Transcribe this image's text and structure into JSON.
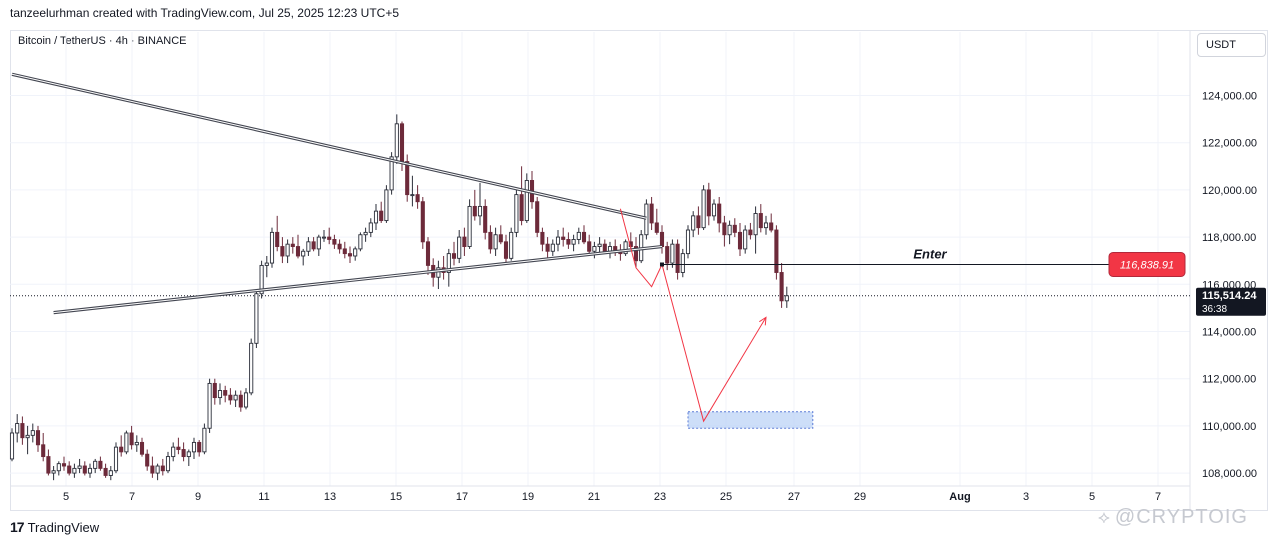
{
  "header": {
    "author_line": "tanzeelurhman created with TradingView.com, Jul 25, 2025 12:23 UTC+5"
  },
  "symbol": {
    "title": "Bitcoin / TetherUS · 4h · BINANCE",
    "currency": "USDT"
  },
  "footer": {
    "logo_text": "TradingView",
    "watermark": "@CRYPTOIG"
  },
  "colors": {
    "bull": "#2a2e39",
    "bear": "#6d2a3a",
    "pattern_line": "#434651",
    "projection": "#f23645",
    "target_fill": "#bcd3f5",
    "target_border": "#5b7bd6",
    "label_red": "#f23645",
    "price_tag": "#131722"
  },
  "chart_data": {
    "type": "candlestick",
    "symbol": "BTCUSDT",
    "interval": "4h",
    "exchange": "BINANCE",
    "x_tick_labels": [
      "5",
      "7",
      "9",
      "11",
      "13",
      "15",
      "17",
      "19",
      "21",
      "23",
      "25",
      "27",
      "29",
      "Aug",
      "3",
      "5",
      "7"
    ],
    "y_tick_labels": [
      "124,000.00",
      "122,000.00",
      "120,000.00",
      "118,000.00",
      "116,000.00",
      "114,000.00",
      "112,000.00",
      "110,000.00",
      "108,000.00"
    ],
    "ylim": [
      107000,
      126000
    ],
    "current_price": "115,514.24",
    "countdown": "36:38",
    "candles": [
      [
        108600,
        109900,
        108500,
        109700
      ],
      [
        109700,
        110500,
        109300,
        110100
      ],
      [
        110100,
        110400,
        109200,
        109500
      ],
      [
        109500,
        110000,
        108800,
        109600
      ],
      [
        109600,
        110100,
        109300,
        109800
      ],
      [
        109800,
        110000,
        108900,
        109200
      ],
      [
        109200,
        109700,
        108500,
        108700
      ],
      [
        108700,
        109000,
        107900,
        108000
      ],
      [
        108000,
        108300,
        107700,
        108100
      ],
      [
        108100,
        108500,
        107900,
        108400
      ],
      [
        108400,
        108700,
        108100,
        108300
      ],
      [
        108300,
        108500,
        107900,
        108000
      ],
      [
        108000,
        108400,
        107800,
        108200
      ],
      [
        108200,
        108600,
        108000,
        108300
      ],
      [
        108300,
        108500,
        107900,
        108000
      ],
      [
        108000,
        108400,
        107800,
        108200
      ],
      [
        108200,
        108600,
        108000,
        108500
      ],
      [
        108500,
        108700,
        108100,
        108200
      ],
      [
        108200,
        108400,
        107800,
        107900
      ],
      [
        107900,
        108300,
        107700,
        108100
      ],
      [
        108100,
        109300,
        108000,
        109100
      ],
      [
        109100,
        109600,
        108700,
        108900
      ],
      [
        108900,
        109800,
        108800,
        109700
      ],
      [
        109700,
        110000,
        109000,
        109200
      ],
      [
        109200,
        109600,
        108900,
        109300
      ],
      [
        109300,
        109500,
        108700,
        108800
      ],
      [
        108800,
        109000,
        108100,
        108300
      ],
      [
        108300,
        108700,
        107800,
        108000
      ],
      [
        108000,
        108400,
        107700,
        108300
      ],
      [
        108300,
        108600,
        107900,
        108100
      ],
      [
        108100,
        108900,
        108000,
        108700
      ],
      [
        108700,
        109300,
        108500,
        109100
      ],
      [
        109100,
        109500,
        108800,
        109000
      ],
      [
        109000,
        109300,
        108500,
        108700
      ],
      [
        108700,
        109000,
        108300,
        108900
      ],
      [
        108900,
        109500,
        108600,
        109300
      ],
      [
        109300,
        109400,
        108700,
        108900
      ],
      [
        108900,
        110100,
        108800,
        109900
      ],
      [
        109900,
        112000,
        109700,
        111800
      ],
      [
        111800,
        112000,
        110900,
        111200
      ],
      [
        111200,
        111800,
        110900,
        111500
      ],
      [
        111500,
        111700,
        111000,
        111300
      ],
      [
        111300,
        111600,
        110900,
        111100
      ],
      [
        111100,
        111500,
        110800,
        111300
      ],
      [
        111300,
        111500,
        110600,
        110800
      ],
      [
        110800,
        111600,
        110700,
        111400
      ],
      [
        111400,
        113700,
        111300,
        113500
      ],
      [
        113500,
        115800,
        113300,
        115600
      ],
      [
        115600,
        117000,
        115400,
        116800
      ],
      [
        116800,
        117200,
        116300,
        116900
      ],
      [
        116900,
        118400,
        116700,
        118200
      ],
      [
        118200,
        118900,
        117400,
        117600
      ],
      [
        117600,
        118000,
        116900,
        117200
      ],
      [
        117200,
        117900,
        116900,
        117700
      ],
      [
        117700,
        118000,
        117300,
        117600
      ],
      [
        117600,
        118100,
        117100,
        117200
      ],
      [
        117200,
        117500,
        116800,
        117400
      ],
      [
        117400,
        118000,
        117200,
        117800
      ],
      [
        117800,
        118000,
        117400,
        117500
      ],
      [
        117500,
        118100,
        117200,
        118000
      ],
      [
        118000,
        118300,
        117800,
        118000
      ],
      [
        118000,
        118400,
        117700,
        117900
      ],
      [
        117900,
        118100,
        117500,
        117700
      ],
      [
        117700,
        117900,
        117300,
        117500
      ],
      [
        117500,
        117800,
        117100,
        117300
      ],
      [
        117300,
        117600,
        116900,
        117200
      ],
      [
        117200,
        117600,
        117000,
        117500
      ],
      [
        117500,
        118200,
        117400,
        118100
      ],
      [
        118100,
        118400,
        117800,
        118200
      ],
      [
        118200,
        118800,
        118000,
        118600
      ],
      [
        118600,
        119400,
        118300,
        119100
      ],
      [
        119100,
        119500,
        118600,
        118700
      ],
      [
        118700,
        120200,
        118600,
        120000
      ],
      [
        120000,
        121600,
        119800,
        121400
      ],
      [
        121400,
        123200,
        121100,
        122800
      ],
      [
        122800,
        122900,
        120800,
        121200
      ],
      [
        121200,
        121500,
        119500,
        119800
      ],
      [
        119800,
        120600,
        119300,
        119800
      ],
      [
        119800,
        120200,
        119200,
        119500
      ],
      [
        119500,
        119700,
        117500,
        117800
      ],
      [
        117800,
        118000,
        116400,
        116800
      ],
      [
        116800,
        117100,
        115900,
        116300
      ],
      [
        116300,
        117000,
        115800,
        116700
      ],
      [
        116700,
        117200,
        116200,
        116500
      ],
      [
        116500,
        117500,
        115900,
        117300
      ],
      [
        117300,
        117800,
        116800,
        117100
      ],
      [
        117100,
        118300,
        116900,
        118000
      ],
      [
        118000,
        118400,
        117200,
        117600
      ],
      [
        117600,
        119600,
        117500,
        119300
      ],
      [
        119300,
        120000,
        118700,
        118900
      ],
      [
        118900,
        120300,
        118500,
        119300
      ],
      [
        119300,
        119600,
        117900,
        118200
      ],
      [
        118200,
        118500,
        117300,
        117500
      ],
      [
        117500,
        118400,
        117200,
        118100
      ],
      [
        118100,
        118500,
        117700,
        117800
      ],
      [
        117800,
        118100,
        116900,
        117100
      ],
      [
        117100,
        118400,
        117000,
        118200
      ],
      [
        118200,
        120100,
        118000,
        119800
      ],
      [
        119800,
        121000,
        118500,
        118700
      ],
      [
        118700,
        120700,
        118600,
        120400
      ],
      [
        120400,
        120800,
        119200,
        119500
      ],
      [
        119500,
        119700,
        118000,
        118200
      ],
      [
        118200,
        118400,
        117400,
        117700
      ],
      [
        117700,
        118000,
        117100,
        117400
      ],
      [
        117400,
        117900,
        117200,
        117700
      ],
      [
        117700,
        118300,
        117400,
        118000
      ],
      [
        118000,
        118400,
        117600,
        117900
      ],
      [
        117900,
        118200,
        117500,
        117700
      ],
      [
        117700,
        118100,
        117400,
        117900
      ],
      [
        117900,
        118400,
        117700,
        118200
      ],
      [
        118200,
        118500,
        117700,
        117800
      ],
      [
        117800,
        118100,
        117200,
        117400
      ],
      [
        117400,
        117800,
        117100,
        117600
      ],
      [
        117600,
        118000,
        117300,
        117700
      ],
      [
        117700,
        117900,
        117300,
        117400
      ],
      [
        117400,
        117800,
        117100,
        117600
      ],
      [
        117600,
        117900,
        117200,
        117400
      ],
      [
        117400,
        117700,
        117000,
        117300
      ],
      [
        117300,
        117900,
        117200,
        117800
      ],
      [
        117800,
        118200,
        117500,
        117600
      ],
      [
        117600,
        118000,
        116700,
        117000
      ],
      [
        117000,
        118300,
        116900,
        118100
      ],
      [
        118100,
        119600,
        117900,
        119400
      ],
      [
        119400,
        119700,
        118300,
        118600
      ],
      [
        118600,
        119200,
        118100,
        118200
      ],
      [
        118200,
        118500,
        117300,
        117600
      ],
      [
        117600,
        117800,
        116600,
        116900
      ],
      [
        116900,
        117900,
        116700,
        117700
      ],
      [
        117700,
        117900,
        116200,
        116500
      ],
      [
        116500,
        117500,
        116300,
        117300
      ],
      [
        117300,
        118500,
        117100,
        118300
      ],
      [
        118300,
        119100,
        118000,
        118900
      ],
      [
        118900,
        119300,
        118100,
        118400
      ],
      [
        118400,
        120200,
        118300,
        120000
      ],
      [
        120000,
        120300,
        118500,
        118900
      ],
      [
        118900,
        119600,
        118700,
        119400
      ],
      [
        119400,
        119700,
        118200,
        118600
      ],
      [
        118600,
        118900,
        117600,
        118100
      ],
      [
        118100,
        118700,
        117700,
        118500
      ],
      [
        118500,
        118800,
        118000,
        118200
      ],
      [
        118200,
        118600,
        117200,
        117500
      ],
      [
        117500,
        118500,
        117300,
        118300
      ],
      [
        118300,
        118600,
        117900,
        118100
      ],
      [
        118100,
        119300,
        117300,
        119000
      ],
      [
        119000,
        119400,
        118200,
        118400
      ],
      [
        118400,
        118900,
        118100,
        118600
      ],
      [
        118600,
        119000,
        118200,
        118300
      ],
      [
        118300,
        118500,
        116200,
        116500
      ],
      [
        116500,
        116900,
        115000,
        115300
      ],
      [
        115300,
        115900,
        115000,
        115514
      ]
    ],
    "patterns": {
      "upper_trendline": [
        [
          0,
          124900
        ],
        [
          122,
          118800
        ]
      ],
      "lower_trendline": [
        [
          8,
          114800
        ],
        [
          125,
          117600
        ]
      ],
      "projection_path": [
        [
          117,
          119200
        ],
        [
          120,
          116700
        ],
        [
          123,
          115900
        ],
        [
          125,
          116838.91
        ],
        [
          133,
          110200
        ],
        [
          145,
          114600
        ]
      ],
      "target_zone": {
        "from": 110600,
        "to": 109900,
        "x_from": 130,
        "x_to": 154
      },
      "entry_line": {
        "price": 116838.91,
        "x_from": 125,
        "label": "Enter",
        "tag": "116,838.91"
      }
    }
  }
}
